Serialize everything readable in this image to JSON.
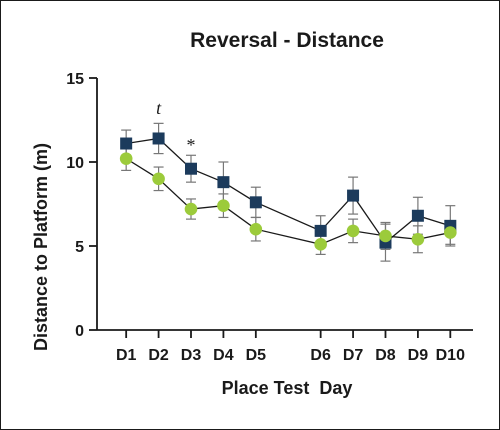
{
  "chart_data": {
    "type": "line",
    "title": "Reversal - Distance",
    "xlabel": "Place Test  Day",
    "ylabel": "Distance to Platform (m)",
    "ylim": [
      0,
      15
    ],
    "yticks": [
      0,
      5,
      10,
      15
    ],
    "categories": [
      "D1",
      "D2",
      "D3",
      "D4",
      "D5",
      "D6",
      "D7",
      "D8",
      "D9",
      "D10"
    ],
    "x_positions": [
      1,
      2,
      3,
      4,
      5,
      7,
      8,
      9,
      10,
      11
    ],
    "xlim": [
      0.1,
      11.7
    ],
    "grid": false,
    "legend": "none",
    "series": [
      {
        "marker": "square",
        "color": "#1c3b5c",
        "values": [
          11.1,
          11.4,
          9.6,
          8.8,
          7.6,
          5.9,
          8.0,
          5.2,
          6.8,
          6.2
        ],
        "errors": [
          0.8,
          0.9,
          0.8,
          1.2,
          0.9,
          0.9,
          1.1,
          1.1,
          1.1,
          1.2
        ]
      },
      {
        "marker": "circle",
        "color": "#9ccb3b",
        "values": [
          10.2,
          9.0,
          7.2,
          7.4,
          6.0,
          5.1,
          5.9,
          5.6,
          5.4,
          5.8
        ],
        "errors": [
          0.7,
          0.7,
          0.6,
          0.7,
          0.7,
          0.6,
          0.7,
          0.8,
          0.8,
          0.7
        ]
      }
    ],
    "annotations": [
      {
        "text": "t",
        "x_index": 1,
        "y": 13.2,
        "style": "italic"
      },
      {
        "text": "*",
        "x_index": 2,
        "y": 11.0,
        "style": "normal"
      }
    ]
  }
}
